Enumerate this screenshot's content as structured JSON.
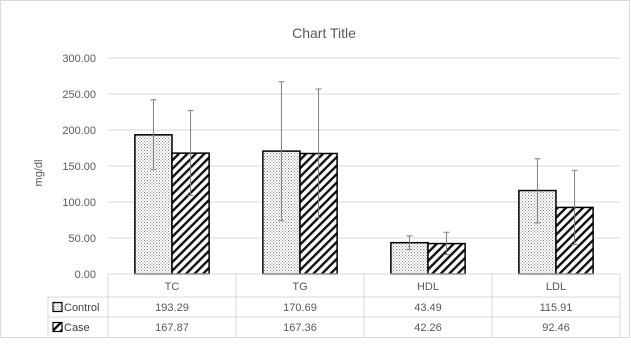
{
  "chart_data": {
    "type": "bar",
    "title": "Chart Title",
    "ylabel": "mg/dl",
    "xlabel": "",
    "ylim": [
      0,
      300
    ],
    "y_ticks": [
      "0.00",
      "50.00",
      "100.00",
      "150.00",
      "200.00",
      "250.00",
      "300.00"
    ],
    "categories": [
      "TC",
      "TG",
      "HDL",
      "LDL"
    ],
    "grid": true,
    "legend": "data-table",
    "series": [
      {
        "name": "Control",
        "values": [
          193.29,
          170.69,
          43.49,
          115.91
        ],
        "labels": [
          "193.29",
          "170.69",
          "43.49",
          "115.91"
        ],
        "error_upper": [
          242,
          267,
          53,
          160
        ],
        "error_lower": [
          145,
          74,
          34,
          71
        ],
        "pattern": "dots"
      },
      {
        "name": "Case",
        "values": [
          167.87,
          167.36,
          42.26,
          92.46
        ],
        "labels": [
          "167.87",
          "167.36",
          "42.26",
          "92.46"
        ],
        "error_upper": [
          227,
          257,
          58,
          144
        ],
        "error_lower": [
          109,
          78,
          27,
          41
        ],
        "pattern": "diagonal-hatch"
      }
    ]
  }
}
